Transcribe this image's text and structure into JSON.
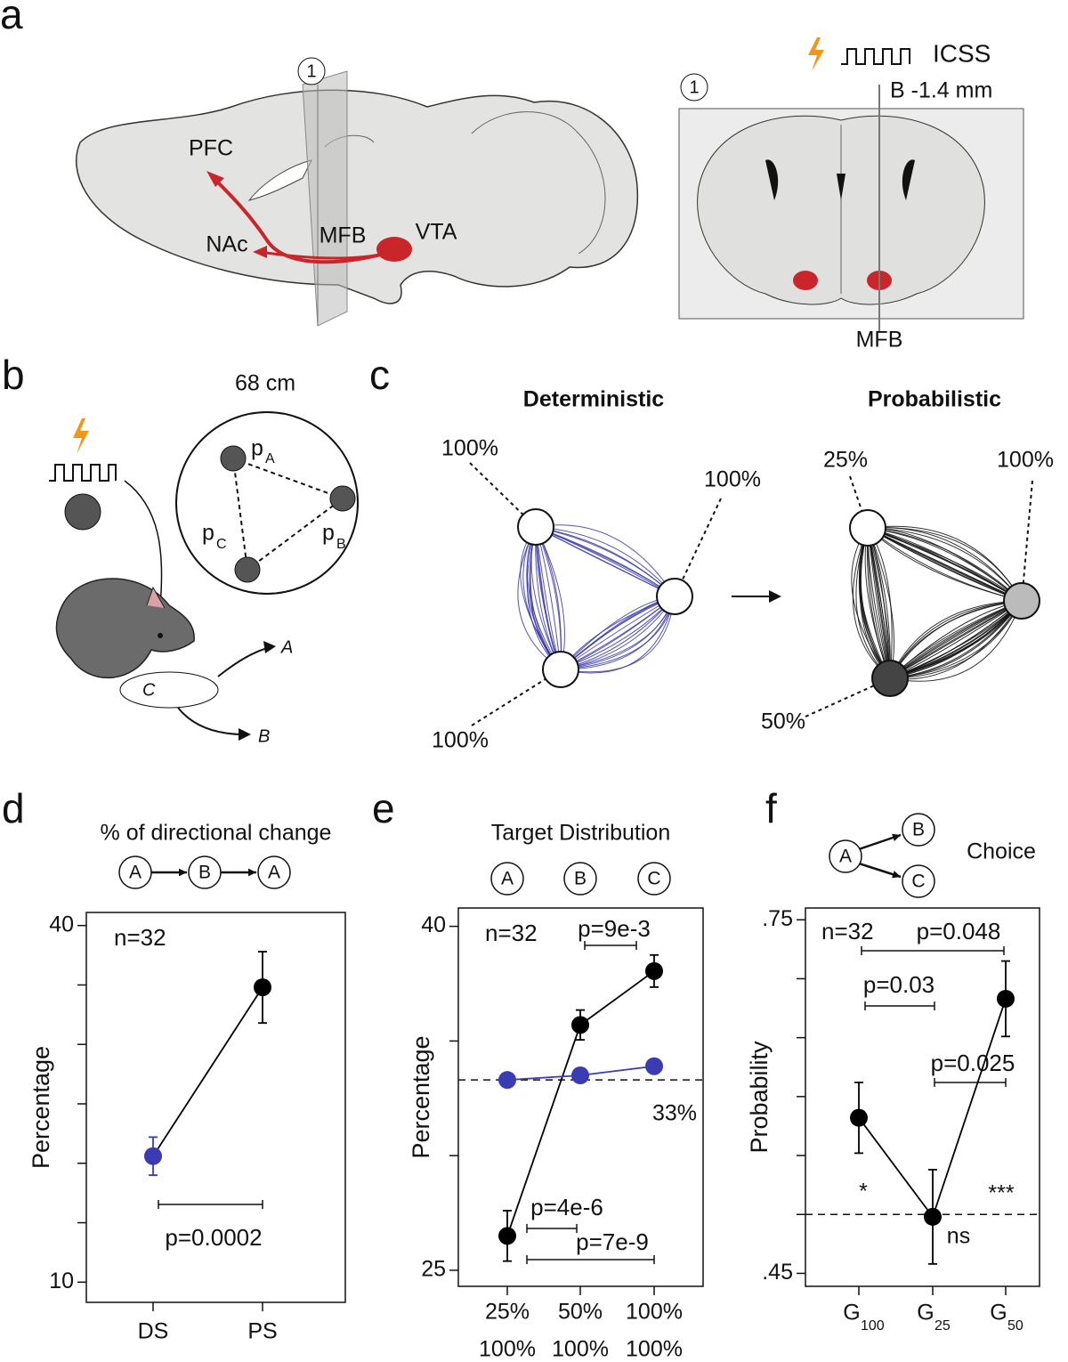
{
  "panel_labels": [
    "a",
    "b",
    "c",
    "d",
    "e",
    "f"
  ],
  "panel_a": {
    "plane_label": "1",
    "regions": [
      "PFC",
      "NAc",
      "MFB",
      "VTA"
    ],
    "stim": "ICSS",
    "coordinate": "B -1.4 mm",
    "coronal_label": "1",
    "coronal_region": "MFB"
  },
  "panel_b": {
    "arena_size": "68 cm",
    "targets": [
      {
        "main": "p",
        "sub": "A"
      },
      {
        "main": "p",
        "sub": "B"
      },
      {
        "main": "p",
        "sub": "C"
      }
    ],
    "choices": [
      "A",
      "B",
      "C"
    ]
  },
  "panel_c": {
    "conditions": [
      {
        "title": "Deterministic",
        "probabilities": [
          "100%",
          "100%",
          "100%"
        ]
      },
      {
        "title": "Probabilistic",
        "probabilities": [
          "25%",
          "100%",
          "50%"
        ]
      }
    ]
  },
  "chart_data": [
    {
      "type": "line",
      "title": "% of directional change",
      "sequence": [
        "A",
        "B",
        "A"
      ],
      "ylabel": "Percentage",
      "categories": [
        "DS",
        "PS"
      ],
      "category_colors": [
        "#3b3bb3",
        "#000000"
      ],
      "series": [
        {
          "color": "#000000",
          "point_colors": [
            "#3b3bb3",
            "#000000"
          ],
          "values": [
            20.6,
            34.8
          ],
          "errors": [
            1.6,
            3.0
          ]
        }
      ],
      "ylim": [
        8.3,
        41.1
      ],
      "yticks": [
        10,
        40
      ],
      "minor_yticks": [
        15,
        20,
        25,
        30,
        35
      ],
      "annotations": [
        "n=32",
        "p=0.0002"
      ]
    },
    {
      "type": "line",
      "title": "Target Distribution",
      "column_headers": [
        "A",
        "B",
        "C"
      ],
      "ylabel": "Percentage",
      "categories": [
        "25%",
        "50%",
        "100%"
      ],
      "categories_2": [
        "100%",
        "100%",
        "100%"
      ],
      "categories_2_color": "#3b3bb3",
      "series": [
        {
          "color": "#000000",
          "values": [
            26.5,
            35.7,
            38.05
          ],
          "errors": [
            1.1,
            0.65,
            0.7
          ]
        },
        {
          "color": "#3b3bb3",
          "values": [
            33.3,
            33.5,
            33.9
          ]
        }
      ],
      "reference": {
        "value": 33.3,
        "label": "33%"
      },
      "ylim": [
        24.3,
        40.8
      ],
      "yticks": [
        25,
        40
      ],
      "minor_yticks": [
        30,
        35
      ],
      "annotations": [
        "n=32",
        "p=9e-3",
        "p=4e-6",
        "p=7e-9"
      ]
    },
    {
      "type": "line",
      "title": "Choice",
      "choice_nodes": [
        "A",
        "B",
        "C"
      ],
      "ylabel": "Probability",
      "categories": [
        "G",
        "G",
        "G"
      ],
      "category_subscripts": [
        "100",
        "25",
        "50"
      ],
      "series": [
        {
          "color": "#000000",
          "values": [
            0.582,
            0.498,
            0.683
          ],
          "errors": [
            0.03,
            0.04,
            0.032
          ]
        }
      ],
      "reference": {
        "value": 0.5
      },
      "ylim": [
        0.439,
        0.76
      ],
      "yticks": [
        {
          "value": 0.75,
          "label": ".75"
        },
        {
          "value": 0.45,
          "label": ".45"
        }
      ],
      "minor_yticks": [
        0.5,
        0.55,
        0.6,
        0.65,
        0.7
      ],
      "annotations": [
        "n=32",
        "p=0.048",
        "p=0.03",
        "p=0.025"
      ],
      "significance": [
        "*",
        "ns",
        "***"
      ],
      "significance_color": "#e8321e"
    }
  ]
}
